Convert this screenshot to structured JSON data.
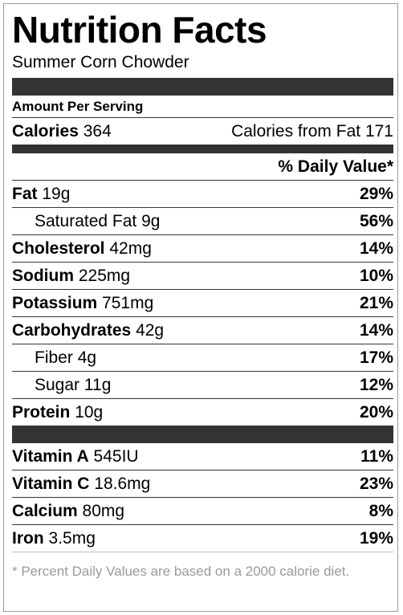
{
  "title": "Nutrition Facts",
  "recipe_name": "Summer Corn Chowder",
  "amount_per_serving": "Amount Per Serving",
  "calories": {
    "label": "Calories",
    "value": "364",
    "from_fat_label": "Calories from Fat",
    "from_fat_value": "171"
  },
  "daily_value_header": "% Daily Value*",
  "nutrients": [
    {
      "label": "Fat",
      "amount": "19g",
      "dv": "29%",
      "indent": false
    },
    {
      "label": "Saturated Fat",
      "amount": "9g",
      "dv": "56%",
      "indent": true
    },
    {
      "label": "Cholesterol",
      "amount": "42mg",
      "dv": "14%",
      "indent": false
    },
    {
      "label": "Sodium",
      "amount": "225mg",
      "dv": "10%",
      "indent": false
    },
    {
      "label": "Potassium",
      "amount": "751mg",
      "dv": "21%",
      "indent": false
    },
    {
      "label": "Carbohydrates",
      "amount": "42g",
      "dv": "14%",
      "indent": false
    },
    {
      "label": "Fiber",
      "amount": "4g",
      "dv": "17%",
      "indent": true
    },
    {
      "label": "Sugar",
      "amount": "11g",
      "dv": "12%",
      "indent": true
    },
    {
      "label": "Protein",
      "amount": "10g",
      "dv": "20%",
      "indent": false
    }
  ],
  "vitamins": [
    {
      "label": "Vitamin A",
      "amount": "545IU",
      "dv": "11%"
    },
    {
      "label": "Vitamin C",
      "amount": "18.6mg",
      "dv": "23%"
    },
    {
      "label": "Calcium",
      "amount": "80mg",
      "dv": "8%"
    },
    {
      "label": "Iron",
      "amount": "3.5mg",
      "dv": "19%"
    }
  ],
  "footnote": "* Percent Daily Values are based on a 2000 calorie diet."
}
